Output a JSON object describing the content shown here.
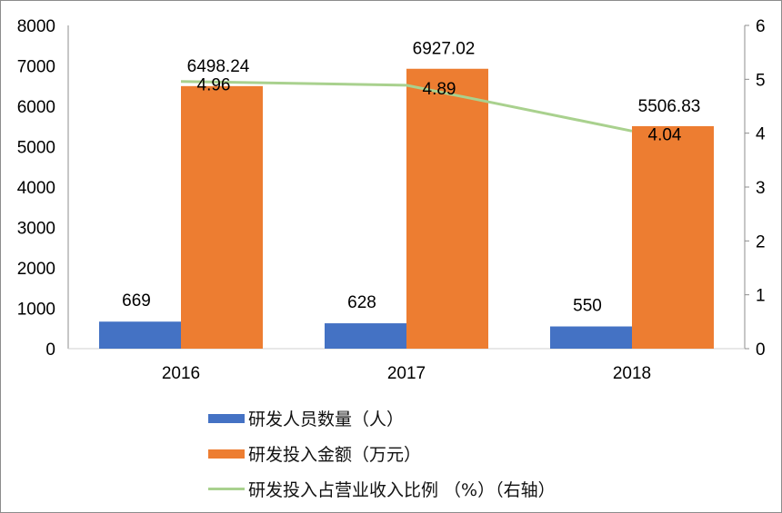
{
  "chart_data": {
    "type": "bar+line",
    "categories": [
      "2016",
      "2017",
      "2018"
    ],
    "series": [
      {
        "name": "研发人员数量（人）",
        "type": "bar",
        "axis": "left",
        "color": "#4472C4",
        "values": [
          669,
          628,
          550
        ],
        "labels": [
          "669",
          "628",
          "550"
        ]
      },
      {
        "name": "研发投入金额（万元）",
        "type": "bar",
        "axis": "left",
        "color": "#ED7D31",
        "values": [
          6498.24,
          6927.02,
          5506.83
        ],
        "labels": [
          "6498.24",
          "6927.02",
          "5506.83"
        ]
      },
      {
        "name": "研发投入占营业收入比例 （%）（右轴）",
        "type": "line",
        "axis": "right",
        "color": "#A9D18E",
        "values": [
          4.96,
          4.89,
          4.04
        ],
        "labels": [
          "4.96",
          "4.89",
          "4.04"
        ]
      }
    ],
    "ylim_left": [
      0,
      8000
    ],
    "yticks_left": [
      "0",
      "1000",
      "2000",
      "3000",
      "4000",
      "5000",
      "6000",
      "7000",
      "8000"
    ],
    "ylim_right": [
      0,
      6
    ],
    "yticks_right": [
      "0",
      "1",
      "2",
      "3",
      "4",
      "5",
      "6"
    ],
    "grid": false,
    "legend_placement": "bottom"
  }
}
